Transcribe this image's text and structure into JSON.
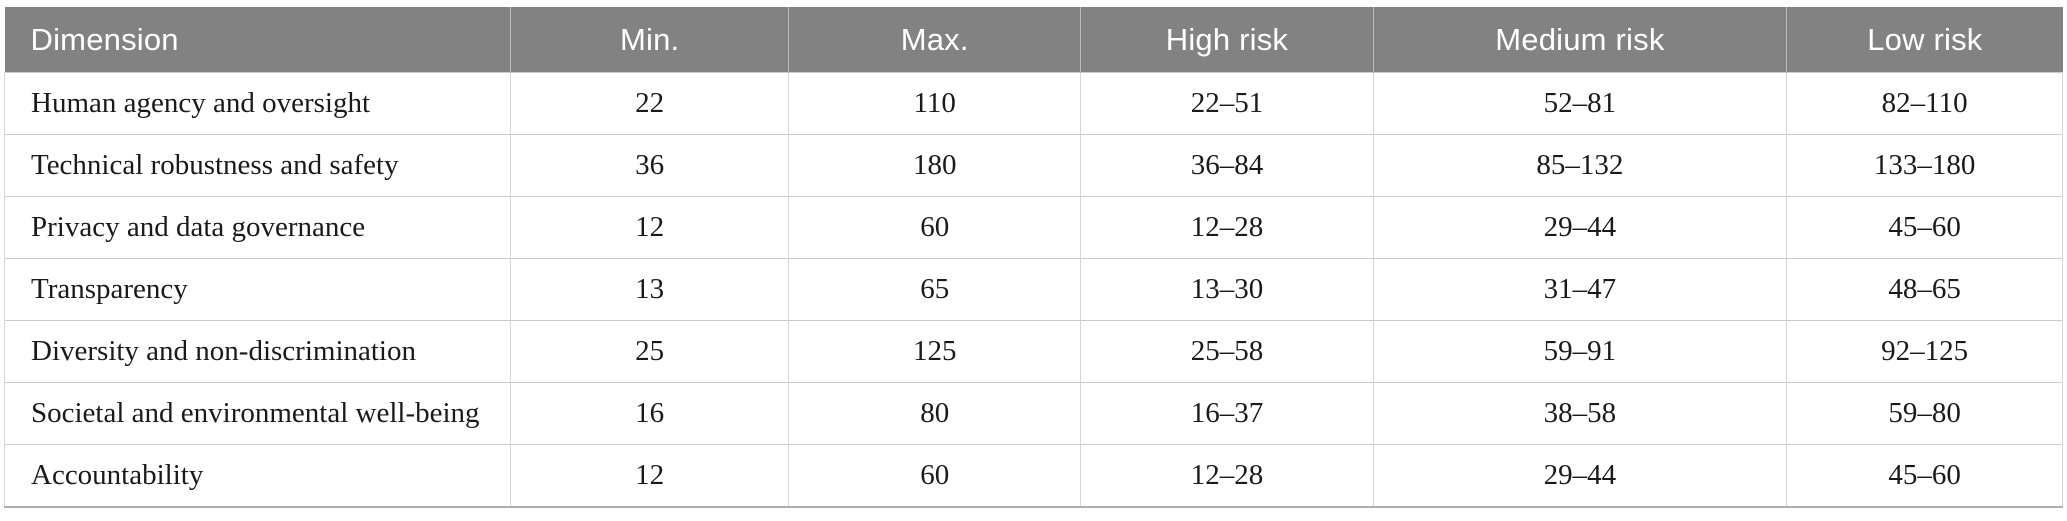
{
  "colors": {
    "header_bg": "#828282",
    "header_text": "#ffffff",
    "body_text": "#1a1a1a",
    "row_border": "#cbcbcb",
    "col_border": "#d6d6d6",
    "bottom_border": "#aeaeae"
  },
  "table": {
    "columns": [
      {
        "label": "Dimension"
      },
      {
        "label": "Min."
      },
      {
        "label": "Max."
      },
      {
        "label": "High risk"
      },
      {
        "label": "Medium risk"
      },
      {
        "label": "Low risk"
      }
    ],
    "rows": [
      [
        "Human agency and oversight",
        "22",
        "110",
        "22–51",
        "52–81",
        "82–110"
      ],
      [
        "Technical robustness and safety",
        "36",
        "180",
        "36–84",
        "85–132",
        "133–180"
      ],
      [
        "Privacy and data governance",
        "12",
        "60",
        "12–28",
        "29–44",
        "45–60"
      ],
      [
        "Transparency",
        "13",
        "65",
        "13–30",
        "31–47",
        "48–65"
      ],
      [
        "Diversity and non-discrimination",
        "25",
        "125",
        "25–58",
        "59–91",
        "92–125"
      ],
      [
        "Societal and environmental well-being",
        "16",
        "80",
        "16–37",
        "38–58",
        "59–80"
      ],
      [
        "Accountability",
        "12",
        "60",
        "12–28",
        "29–44",
        "45–60"
      ]
    ]
  }
}
